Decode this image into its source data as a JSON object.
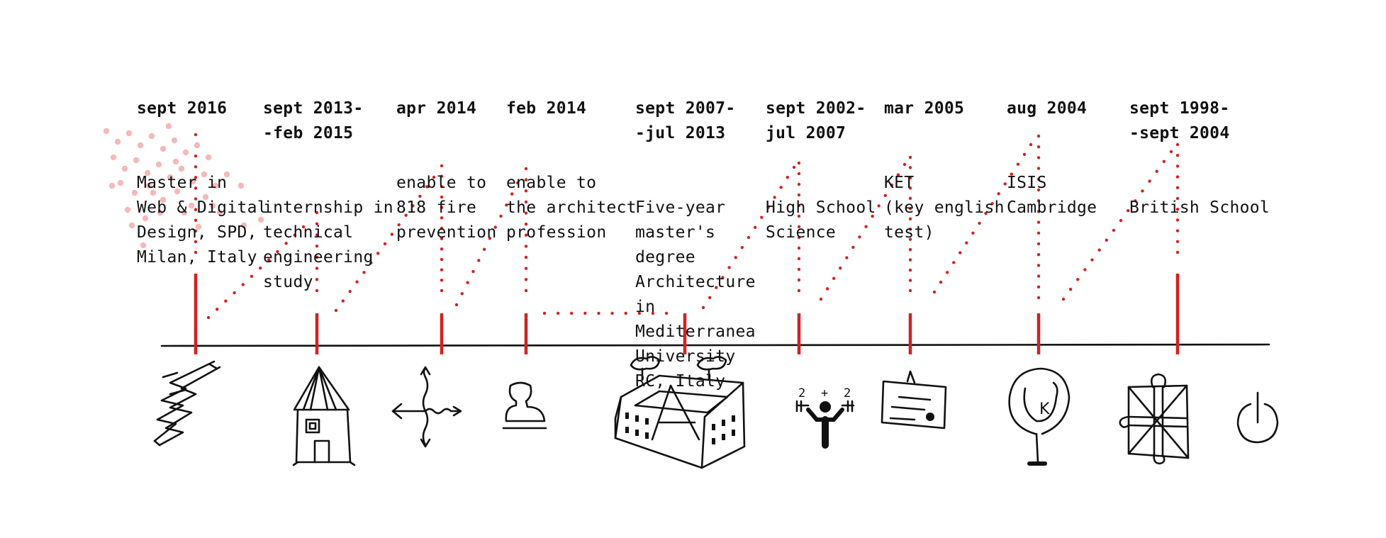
{
  "timeline": {
    "accent_color": "#d42020",
    "entries": [
      {
        "date": "sept 2016",
        "desc": "Master in\nWeb & Digital\nDesign, SPD,\nMilan, Italy",
        "icon": "lightning-pencil-icon"
      },
      {
        "date": "sept 2013-\n-feb 2015",
        "desc": "internship in\ntechnical\nengineering\nstudy",
        "icon": "house-icon"
      },
      {
        "date": "apr 2014",
        "desc": "enable to\n818 fire\nprevention",
        "icon": "arrows-cross-icon"
      },
      {
        "date": "feb 2014",
        "desc": "enable to\nthe architect\nprofession",
        "icon": "stamp-icon"
      },
      {
        "date": "sept 2007-\n-jul 2013",
        "desc": "Five-year\nmaster's\ndegree\nArchitecture\nin\nMediterranea\nUniversity\nRC, Italy",
        "icon": "university-building-icon"
      },
      {
        "date": "sept 2002-\njul 2007",
        "desc": "High School\nScience",
        "icon": "math-figure-icon"
      },
      {
        "date": "mar 2005",
        "desc": "KET\n(key english\ntest)",
        "icon": "certificate-icon"
      },
      {
        "date": "aug 2004",
        "desc": "ISIS\nCambridge",
        "icon": "uk-magnifier-icon"
      },
      {
        "date": "sept 1998-\n-sept 2004",
        "desc": "British School",
        "icon": "union-jack-puzzle-icon"
      }
    ],
    "end_icon": "power-icon"
  }
}
